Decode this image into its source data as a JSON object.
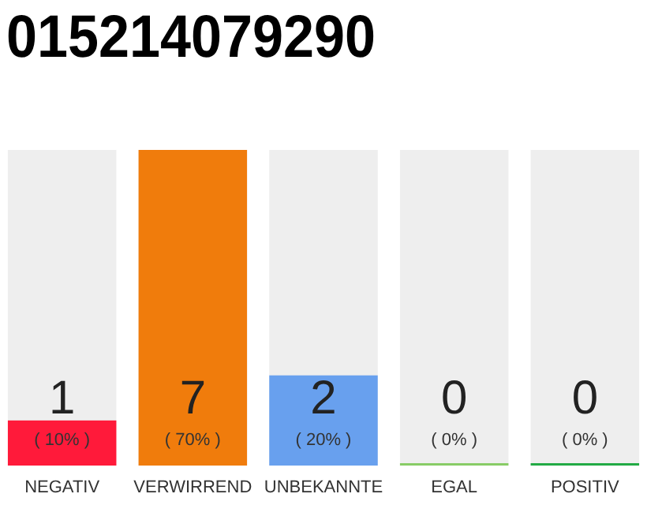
{
  "chart_data": {
    "type": "bar",
    "title": "015214079290",
    "categories": [
      "NEGATIV",
      "VERWIRREND",
      "UNBEKANNTE",
      "EGAL",
      "POSITIV"
    ],
    "values": [
      1,
      7,
      2,
      0,
      0
    ],
    "colors": [
      "#ff1a3a",
      "#f07c0c",
      "#68a0ee",
      "#88cc66",
      "#22aa44"
    ],
    "ylim": [
      0,
      7
    ],
    "data_labels": true,
    "annotations": [
      "( 10% )",
      "( 70% )",
      "( 20% )",
      "( 0% )",
      "( 0% )"
    ]
  }
}
